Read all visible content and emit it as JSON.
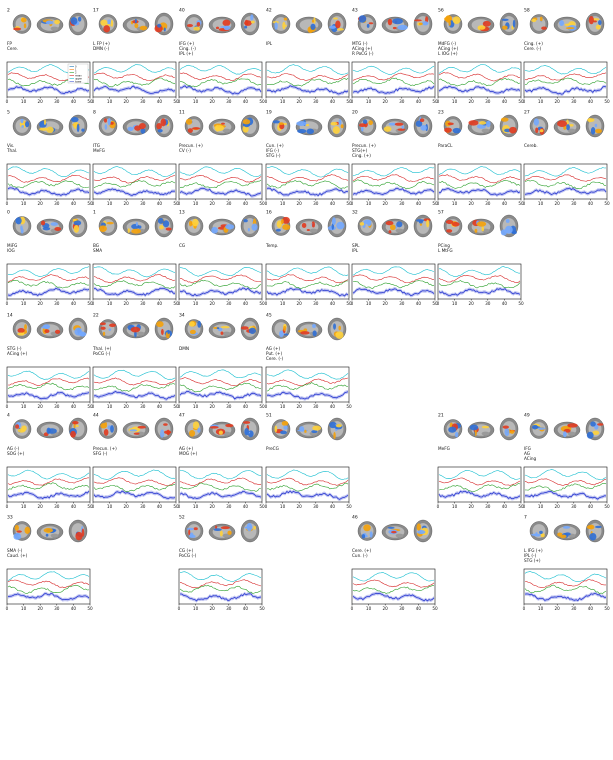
{
  "axis": {
    "xticks": [
      "0",
      "10",
      "20",
      "30",
      "40",
      "50"
    ]
  },
  "legend": {
    "labels": [
      "0",
      "1",
      "2",
      "mean",
      "upper",
      "lower"
    ],
    "colors": [
      "#1f77b4",
      "#ff7f0e",
      "#2ca02c",
      "#d62728",
      "#17becf",
      "#4c5ed6"
    ]
  },
  "panels": [
    {
      "id": "2",
      "labels": [
        "FP",
        "Cere."
      ]
    },
    {
      "id": "17",
      "labels": [
        "L FP (+)",
        "DMN (-)"
      ]
    },
    {
      "id": "40",
      "labels": [
        "IFG (+)",
        "Cing. (-)",
        "IPL (+)"
      ]
    },
    {
      "id": "42",
      "labels": [
        "IPL"
      ]
    },
    {
      "id": "43",
      "labels": [
        "MTG (-)",
        "ACing (+)",
        "R PoCG (-)"
      ]
    },
    {
      "id": "56",
      "labels": [
        "MdFG (-)",
        "ACing (+)",
        "L IOG (+)"
      ]
    },
    {
      "id": "58",
      "labels": [
        "Cing. (+)",
        "Cere. (-)"
      ]
    },
    {
      "id": "5",
      "labels": [
        "Vis.",
        "Thal."
      ]
    },
    {
      "id": "8",
      "labels": [
        "ITG",
        "MeFG"
      ]
    },
    {
      "id": "11",
      "labels": [
        "Precun. (+)",
        "CV (-)"
      ]
    },
    {
      "id": "19",
      "labels": [
        "Cun. (+)",
        "IFG (-)",
        "STG (-)"
      ]
    },
    {
      "id": "20",
      "labels": [
        "Precun. (+)",
        "STG(+)",
        "Cing. (+)"
      ]
    },
    {
      "id": "23",
      "labels": [
        "ParaCL"
      ]
    },
    {
      "id": "27",
      "labels": [
        "Cereb."
      ]
    },
    {
      "id": "0",
      "labels": [
        "MiFG",
        "IOG"
      ]
    },
    {
      "id": "1",
      "labels": [
        "BG",
        "SMA"
      ]
    },
    {
      "id": "13",
      "labels": [
        "CG"
      ]
    },
    {
      "id": "16",
      "labels": [
        "Temp."
      ]
    },
    {
      "id": "32",
      "labels": [
        "SPL",
        "IPL"
      ]
    },
    {
      "id": "57",
      "labels": [
        "PCing",
        "L MtFG"
      ]
    },
    {
      "id": "14",
      "labels": [
        "STG (-)",
        "ACing (+)"
      ]
    },
    {
      "id": "22",
      "labels": [
        "Thal. (+)",
        "PoCG (-)"
      ]
    },
    {
      "id": "34",
      "labels": [
        "DMN"
      ]
    },
    {
      "id": "45",
      "labels": [
        "AG (+)",
        "Put. (+)",
        "Cere. (-)"
      ]
    },
    {
      "id": "4",
      "labels": [
        "AG (-)",
        "SOG (+)"
      ]
    },
    {
      "id": "44",
      "labels": [
        "Precun. (+)",
        "SFG (-)"
      ]
    },
    {
      "id": "47",
      "labels": [
        "AG (+)",
        "MOG (+)"
      ]
    },
    {
      "id": "51",
      "labels": [
        "PreCG"
      ]
    },
    {
      "id": "21",
      "labels": [
        "MeFG"
      ]
    },
    {
      "id": "49",
      "labels": [
        "IFG",
        "AG",
        "ACing"
      ]
    },
    {
      "id": "33",
      "labels": [
        "SMA (-)",
        "Caud. (+)"
      ]
    },
    {
      "id": "52",
      "labels": [
        "CG (+)",
        "PoCG (-)"
      ]
    },
    {
      "id": "46",
      "labels": [
        "Cere. (+)",
        "Cun. (-)"
      ]
    },
    {
      "id": "7",
      "labels": [
        "L IFG (+)",
        "IPL (-)",
        "STG (+)"
      ]
    }
  ]
}
